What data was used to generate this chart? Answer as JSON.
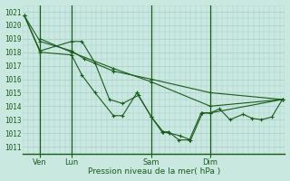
{
  "title": "Pression niveau de la mer( hPa )",
  "bg_color": "#c8e8e0",
  "grid_color": "#a8cccc",
  "line_color": "#1a5c1a",
  "ylim": [
    1010.5,
    1021.5
  ],
  "yticks": [
    1011,
    1012,
    1013,
    1014,
    1015,
    1016,
    1017,
    1018,
    1019,
    1020,
    1021
  ],
  "xlim": [
    0,
    1.0
  ],
  "day_labels": [
    "Ven",
    "Lun",
    "Sam",
    "Dim"
  ],
  "day_positions": [
    0.065,
    0.185,
    0.49,
    0.715
  ],
  "series1": {
    "x": [
      0.005,
      0.065,
      0.185,
      0.225,
      0.275,
      0.345,
      0.38,
      0.435,
      0.49,
      0.53,
      0.555,
      0.595,
      0.635,
      0.68,
      0.715,
      0.75,
      0.79,
      0.84,
      0.875,
      0.91,
      0.95,
      0.99
    ],
    "y": [
      1020.7,
      1018.0,
      1017.8,
      1016.3,
      1015.0,
      1013.3,
      1013.3,
      1015.0,
      1013.2,
      1012.1,
      1012.1,
      1011.5,
      1011.5,
      1013.5,
      1013.5,
      1013.8,
      1013.0,
      1013.4,
      1013.1,
      1013.0,
      1013.2,
      1014.5
    ]
  },
  "series2": {
    "x": [
      0.005,
      0.065,
      0.185,
      0.225,
      0.275,
      0.33,
      0.38,
      0.44,
      0.49,
      0.535,
      0.56,
      0.6,
      0.64,
      0.685,
      0.715,
      0.99
    ],
    "y": [
      1020.7,
      1018.1,
      1018.8,
      1018.8,
      1017.2,
      1014.5,
      1014.2,
      1014.8,
      1013.2,
      1012.1,
      1012.0,
      1011.8,
      1011.5,
      1013.5,
      1013.5,
      1014.5
    ]
  },
  "series3": {
    "x": [
      0.005,
      0.065,
      0.185,
      0.235,
      0.345,
      0.49,
      0.715,
      0.99
    ],
    "y": [
      1020.7,
      1018.8,
      1018.1,
      1017.5,
      1016.6,
      1016.0,
      1015.0,
      1014.5
    ]
  },
  "series4": {
    "x": [
      0.065,
      0.185,
      0.345,
      0.49,
      0.715,
      0.99
    ],
    "y": [
      1019.0,
      1018.0,
      1016.8,
      1015.8,
      1014.0,
      1014.5
    ]
  }
}
